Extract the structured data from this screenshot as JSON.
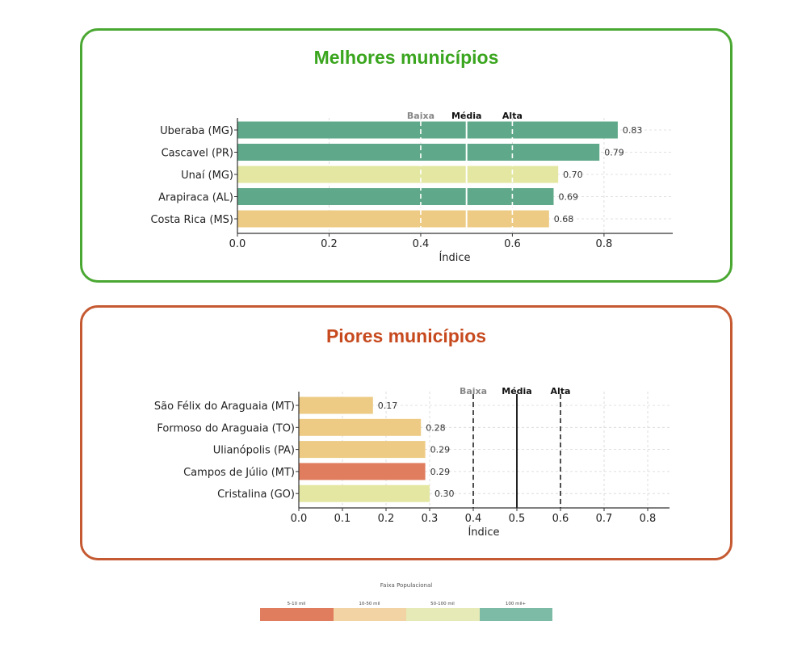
{
  "panels": {
    "best": {
      "title": "Melhores municípios"
    },
    "worst": {
      "title": "Piores municípios"
    }
  },
  "colors": {
    "5-10 mil": "#e07d5e",
    "10-50 mil": "#edcb84",
    "50-100 mil": "#e4e7a2",
    "100 mil+": "#5fa98a"
  },
  "chart_data": [
    {
      "type": "bar",
      "orientation": "horizontal",
      "title": "Melhores municípios",
      "categories": [
        "Uberaba (MG)",
        "Cascavel (PR)",
        "Unaí (MG)",
        "Arapiraca (AL)",
        "Costa Rica (MS)"
      ],
      "values": [
        0.83,
        0.79,
        0.7,
        0.69,
        0.68
      ],
      "value_labels": [
        "0.83",
        "0.79",
        "0.70",
        "0.69",
        "0.68"
      ],
      "bar_groups": [
        "100 mil+",
        "100 mil+",
        "50-100 mil",
        "100 mil+",
        "10-50 mil"
      ],
      "xlabel": "Índice",
      "ylabel": "",
      "xlim": [
        0,
        0.95
      ],
      "xticks": [
        0.0,
        0.2,
        0.4,
        0.6,
        0.8
      ],
      "xtick_labels": [
        "0.0",
        "0.2",
        "0.4",
        "0.6",
        "0.8"
      ],
      "reference_lines": [
        {
          "x": 0.4,
          "label": "Baixa",
          "style": "dashed"
        },
        {
          "x": 0.5,
          "label": "Média",
          "style": "solid"
        },
        {
          "x": 0.6,
          "label": "Alta",
          "style": "dashed"
        }
      ],
      "reference_line_color": "#ffffff",
      "grid": true
    },
    {
      "type": "bar",
      "orientation": "horizontal",
      "title": "Piores municípios",
      "categories": [
        "São Félix do Araguaia (MT)",
        "Formoso do Araguaia (TO)",
        "Ulianópolis (PA)",
        "Campos de Júlio (MT)",
        "Cristalina (GO)"
      ],
      "values": [
        0.17,
        0.28,
        0.29,
        0.29,
        0.3
      ],
      "value_labels": [
        "0.17",
        "0.28",
        "0.29",
        "0.29",
        "0.30"
      ],
      "bar_groups": [
        "10-50 mil",
        "10-50 mil",
        "10-50 mil",
        "5-10 mil",
        "50-100 mil"
      ],
      "xlabel": "Índice",
      "ylabel": "",
      "xlim": [
        0,
        0.85
      ],
      "xticks": [
        0.0,
        0.1,
        0.2,
        0.3,
        0.4,
        0.5,
        0.6,
        0.7,
        0.8
      ],
      "xtick_labels": [
        "0.0",
        "0.1",
        "0.2",
        "0.3",
        "0.4",
        "0.5",
        "0.6",
        "0.7",
        "0.8"
      ],
      "reference_lines": [
        {
          "x": 0.4,
          "label": "Baixa",
          "style": "dashed"
        },
        {
          "x": 0.5,
          "label": "Média",
          "style": "solid"
        },
        {
          "x": 0.6,
          "label": "Alta",
          "style": "dashed"
        }
      ],
      "reference_line_color": "#222222",
      "grid": true
    }
  ],
  "legend": {
    "title": "Faixa Populacional",
    "items": [
      {
        "label": "5-10 mil",
        "color": "#e07d5e"
      },
      {
        "label": "10-50 mil",
        "color": "#f2d3a4"
      },
      {
        "label": "50-100 mil",
        "color": "#e6eab6"
      },
      {
        "label": "100 mil+",
        "color": "#7dbba7"
      }
    ]
  }
}
